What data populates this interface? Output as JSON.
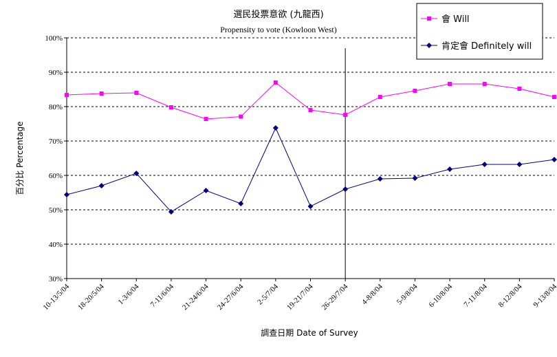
{
  "chart_data": {
    "type": "line",
    "title": "選民投票意欲 (九龍西)",
    "subtitle": "Propensity to vote (Kowloon West)",
    "xlabel": "調查日期 Date of Survey",
    "ylabel": "百分比 Percentage",
    "ylim": [
      30,
      100
    ],
    "yticks": [
      "30%",
      "40%",
      "50%",
      "60%",
      "70%",
      "80%",
      "90%",
      "100%"
    ],
    "grid": "horizontal dashed",
    "legend_position": "top-right",
    "categories": [
      "10-13/5/04",
      "18-20/5/04",
      "1-3/6/04",
      "7-11/6/04",
      "21-24/6/04",
      "24-27/6/04",
      "2-5/7/04",
      "19-21/7/04",
      "26-29/7/04",
      "4-8/8/04",
      "5-9/8/04",
      "6-10/8/04",
      "7-11/8/04",
      "8-12/8/04",
      "9-13/8/04"
    ],
    "series": [
      {
        "name": "會 Will",
        "color": "#ff00ff",
        "marker": "square",
        "values": [
          83.4,
          83.8,
          84.0,
          79.8,
          76.4,
          77.1,
          87.0,
          79.0,
          77.6,
          82.8,
          84.6,
          86.6,
          86.6,
          85.2,
          82.8
        ]
      },
      {
        "name": "肯定會 Definitely will",
        "color": "#000080",
        "marker": "diamond",
        "values": [
          54.4,
          57.0,
          60.6,
          49.4,
          55.6,
          51.8,
          73.8,
          51.0,
          56.0,
          59.0,
          59.2,
          61.8,
          63.2,
          63.2,
          64.6
        ]
      }
    ],
    "vertical_marker_after_category": "26-29/7/04"
  }
}
